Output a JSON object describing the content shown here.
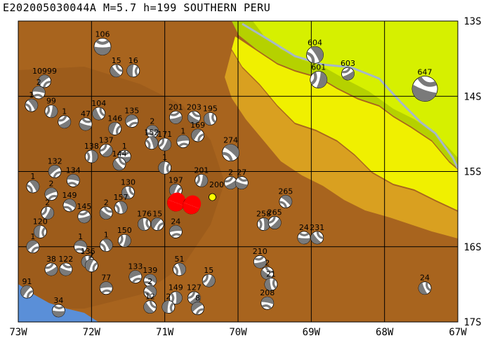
{
  "title": "E202005030044A  M=5.7  h=199  SOUTHERN PERU",
  "map": {
    "lon_range": [
      -73,
      -67
    ],
    "lat_range": [
      -17,
      -13
    ],
    "x_labels": [
      "73W",
      "72W",
      "71W",
      "70W",
      "69W",
      "68W",
      "67W"
    ],
    "y_labels": [
      "13S",
      "14S",
      "15S",
      "16S",
      "17S"
    ],
    "colors": {
      "lowland": "#b5d100",
      "lowland_light": "#d6f000",
      "foothill": "#f0f000",
      "midslope": "#d9a020",
      "highland": "#a8641e",
      "peak": "#8a4e18",
      "ocean": "#5a8fd8",
      "river": "#a6b8c8",
      "grid": "#000000",
      "beachball_dark": "#7a7a7a",
      "main_event": "#ff0000",
      "epicenter": "#ffff00"
    },
    "main_event": {
      "lon": -70.35,
      "lat": -15.34,
      "label": "200"
    },
    "events": [
      {
        "lon": -71.85,
        "lat": -13.34,
        "label": "106"
      },
      {
        "lon": -71.66,
        "lat": -13.66,
        "label": "15"
      },
      {
        "lon": -71.43,
        "lat": -13.66,
        "label": "16"
      },
      {
        "lon": -72.64,
        "lat": -13.8,
        "label": "10999"
      },
      {
        "lon": -72.72,
        "lat": -13.95,
        "label": "2"
      },
      {
        "lon": -72.82,
        "lat": -14.12,
        "label": "1"
      },
      {
        "lon": -72.55,
        "lat": -14.2,
        "label": "99"
      },
      {
        "lon": -72.37,
        "lat": -14.34,
        "label": "1"
      },
      {
        "lon": -72.08,
        "lat": -14.37,
        "label": "47"
      },
      {
        "lon": -71.9,
        "lat": -14.23,
        "label": "104"
      },
      {
        "lon": -71.68,
        "lat": -14.43,
        "label": "146"
      },
      {
        "lon": -71.45,
        "lat": -14.33,
        "label": "135"
      },
      {
        "lon": -71.17,
        "lat": -14.47,
        "label": "2"
      },
      {
        "lon": -71.18,
        "lat": -14.62,
        "label": "152"
      },
      {
        "lon": -71.0,
        "lat": -14.64,
        "label": "171"
      },
      {
        "lon": -70.85,
        "lat": -14.28,
        "label": "201"
      },
      {
        "lon": -70.6,
        "lat": -14.28,
        "label": "203"
      },
      {
        "lon": -70.38,
        "lat": -14.3,
        "label": "195"
      },
      {
        "lon": -70.55,
        "lat": -14.52,
        "label": "169"
      },
      {
        "lon": -70.75,
        "lat": -14.6,
        "label": "1"
      },
      {
        "lon": -70.1,
        "lat": -14.75,
        "label": "274"
      },
      {
        "lon": -72.0,
        "lat": -14.8,
        "label": "138"
      },
      {
        "lon": -71.8,
        "lat": -14.72,
        "label": "137"
      },
      {
        "lon": -71.55,
        "lat": -14.8,
        "label": "1"
      },
      {
        "lon": -71.62,
        "lat": -14.9,
        "label": "144"
      },
      {
        "lon": -71.0,
        "lat": -14.95,
        "label": "1"
      },
      {
        "lon": -72.5,
        "lat": -15.0,
        "label": "132"
      },
      {
        "lon": -72.25,
        "lat": -15.12,
        "label": "134"
      },
      {
        "lon": -72.8,
        "lat": -15.2,
        "label": "1"
      },
      {
        "lon": -70.5,
        "lat": -15.12,
        "label": "201"
      },
      {
        "lon": -70.1,
        "lat": -15.15,
        "label": "2"
      },
      {
        "lon": -69.95,
        "lat": -15.15,
        "label": "27"
      },
      {
        "lon": -71.5,
        "lat": -15.28,
        "label": "130"
      },
      {
        "lon": -70.85,
        "lat": -15.25,
        "label": "197"
      },
      {
        "lon": -72.55,
        "lat": -15.3,
        "label": "2"
      },
      {
        "lon": -72.3,
        "lat": -15.45,
        "label": "149"
      },
      {
        "lon": -71.6,
        "lat": -15.48,
        "label": "157"
      },
      {
        "lon": -72.6,
        "lat": -15.55,
        "label": "2"
      },
      {
        "lon": -72.1,
        "lat": -15.6,
        "label": "145"
      },
      {
        "lon": -71.8,
        "lat": -15.55,
        "label": "2"
      },
      {
        "lon": -71.28,
        "lat": -15.7,
        "label": "176"
      },
      {
        "lon": -71.1,
        "lat": -15.7,
        "label": "15"
      },
      {
        "lon": -70.85,
        "lat": -15.8,
        "label": "24"
      },
      {
        "lon": -69.35,
        "lat": -15.4,
        "label": "265"
      },
      {
        "lon": -69.65,
        "lat": -15.7,
        "label": "258"
      },
      {
        "lon": -69.5,
        "lat": -15.68,
        "label": "265"
      },
      {
        "lon": -69.1,
        "lat": -15.88,
        "label": "24"
      },
      {
        "lon": -68.92,
        "lat": -15.88,
        "label": "231"
      },
      {
        "lon": -72.7,
        "lat": -15.8,
        "label": "120"
      },
      {
        "lon": -72.8,
        "lat": -16.0,
        "label": "1"
      },
      {
        "lon": -72.15,
        "lat": -16.0,
        "label": "1"
      },
      {
        "lon": -71.8,
        "lat": -15.98,
        "label": "1"
      },
      {
        "lon": -71.55,
        "lat": -15.92,
        "label": "150"
      },
      {
        "lon": -72.55,
        "lat": -16.3,
        "label": "38"
      },
      {
        "lon": -72.35,
        "lat": -16.3,
        "label": "122"
      },
      {
        "lon": -72.05,
        "lat": -16.2,
        "label": "136"
      },
      {
        "lon": -72.0,
        "lat": -16.25,
        "label": "2"
      },
      {
        "lon": -71.4,
        "lat": -16.4,
        "label": "133"
      },
      {
        "lon": -71.2,
        "lat": -16.45,
        "label": "139"
      },
      {
        "lon": -70.8,
        "lat": -16.3,
        "label": "51"
      },
      {
        "lon": -70.4,
        "lat": -16.45,
        "label": "15"
      },
      {
        "lon": -69.7,
        "lat": -16.2,
        "label": "210"
      },
      {
        "lon": -69.6,
        "lat": -16.35,
        "label": "2"
      },
      {
        "lon": -69.55,
        "lat": -16.5,
        "label": "21"
      },
      {
        "lon": -72.88,
        "lat": -16.6,
        "label": "91"
      },
      {
        "lon": -71.8,
        "lat": -16.55,
        "label": "77"
      },
      {
        "lon": -71.2,
        "lat": -16.6,
        "label": "2"
      },
      {
        "lon": -70.85,
        "lat": -16.68,
        "label": "149"
      },
      {
        "lon": -70.6,
        "lat": -16.68,
        "label": "127"
      },
      {
        "lon": -72.45,
        "lat": -16.85,
        "label": "34"
      },
      {
        "lon": -71.2,
        "lat": -16.8,
        "label": "12"
      },
      {
        "lon": -70.95,
        "lat": -16.8,
        "label": "2"
      },
      {
        "lon": -70.55,
        "lat": -16.82,
        "label": "8"
      },
      {
        "lon": -69.6,
        "lat": -16.75,
        "label": "208"
      },
      {
        "lon": -68.95,
        "lat": -13.45,
        "label": "604"
      },
      {
        "lon": -68.9,
        "lat": -13.78,
        "label": "601"
      },
      {
        "lon": -68.5,
        "lat": -13.7,
        "label": "603"
      },
      {
        "lon": -67.45,
        "lat": -13.9,
        "label": "647"
      },
      {
        "lon": -67.45,
        "lat": -16.55,
        "label": "24"
      }
    ]
  }
}
